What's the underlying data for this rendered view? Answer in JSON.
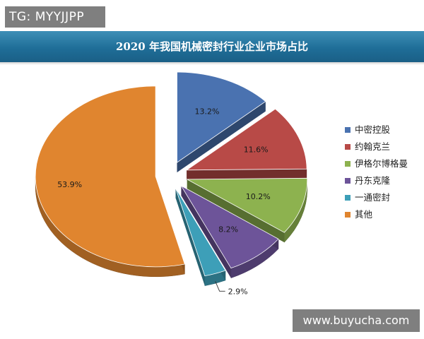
{
  "badge": {
    "text": "TG: MYYJJPP"
  },
  "watermark": {
    "text": "www.buyucha.com"
  },
  "chart_data": {
    "type": "pie",
    "title": "2020 年我国机械密封行业企业市场占比",
    "exploded": true,
    "three_d": true,
    "legend_position": "right",
    "slices": [
      {
        "name": "中密控股",
        "value": 13.2,
        "label": "13.2%",
        "color": "#4a72b0"
      },
      {
        "name": "约翰克兰",
        "value": 11.6,
        "label": "11.6%",
        "color": "#b84a47"
      },
      {
        "name": "伊格尔博格曼",
        "value": 10.2,
        "label": "10.2%",
        "color": "#8db24f"
      },
      {
        "name": "丹东克隆",
        "value": 8.2,
        "label": "8.2%",
        "color": "#6d5499"
      },
      {
        "name": "一通密封",
        "value": 2.9,
        "label": "2.9%",
        "color": "#3d9fb8"
      },
      {
        "name": "其他",
        "value": 53.9,
        "label": "53.9%",
        "color": "#e0852f"
      }
    ]
  }
}
